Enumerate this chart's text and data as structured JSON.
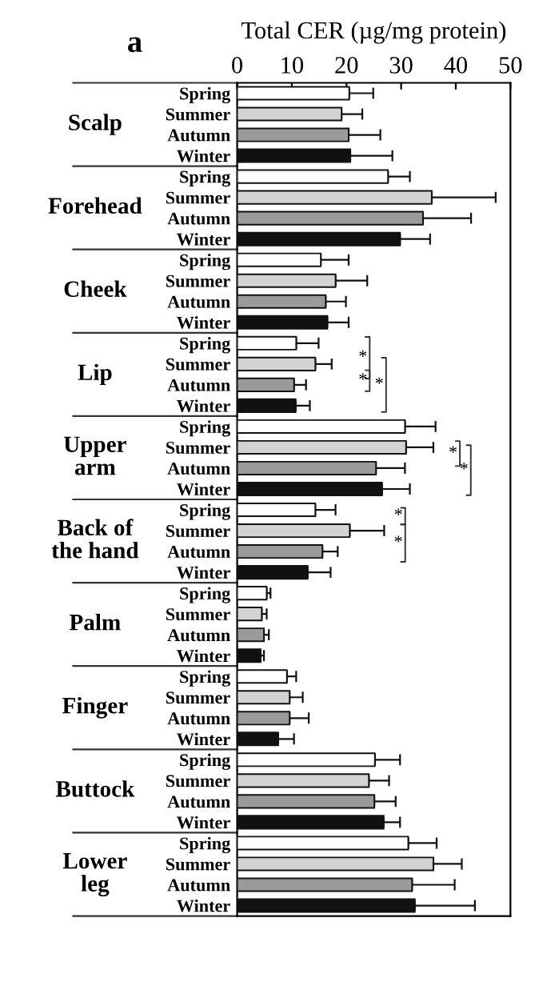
{
  "chart_data": {
    "type": "bar",
    "orientation": "horizontal",
    "title": "a",
    "xlabel": "Total CER (µg/mg protein)",
    "categories": [
      "Scalp",
      "Forehead",
      "Cheek",
      "Lip",
      "Upper\narm",
      "Back of\nthe hand",
      "Palm",
      "Finger",
      "Buttock",
      "Lower\nleg"
    ],
    "series": [
      {
        "name": "Spring",
        "color": "#ffffff",
        "values": [
          20.5,
          27.6,
          15.3,
          10.8,
          30.7,
          14.3,
          5.4,
          9.1,
          25.2,
          31.3
        ],
        "errors": [
          [
            20.5,
            24.9
          ],
          [
            27.6,
            31.6
          ],
          [
            15.3,
            20.4
          ],
          [
            10.8,
            14.9
          ],
          [
            30.7,
            36.3
          ],
          [
            14.3,
            18.0
          ],
          [
            5.4,
            6.1
          ],
          [
            9.1,
            10.8
          ],
          [
            25.2,
            29.8
          ],
          [
            31.3,
            36.5
          ]
        ]
      },
      {
        "name": "Summer",
        "color": "#d3d3d3",
        "values": [
          19.1,
          35.6,
          18.0,
          14.3,
          30.9,
          20.6,
          4.5,
          9.6,
          24.1,
          35.9
        ],
        "errors": [
          [
            19.1,
            22.9
          ],
          [
            35.6,
            47.3
          ],
          [
            18.0,
            23.8
          ],
          [
            14.3,
            17.3
          ],
          [
            30.9,
            35.9
          ],
          [
            20.6,
            26.9
          ],
          [
            4.5,
            5.4
          ],
          [
            9.6,
            12.0
          ],
          [
            24.1,
            27.8
          ],
          [
            35.9,
            41.1
          ]
        ]
      },
      {
        "name": "Autumn",
        "color": "#9a9a9a",
        "values": [
          20.4,
          34.0,
          16.2,
          10.4,
          25.4,
          15.6,
          4.9,
          9.6,
          25.1,
          32.0
        ],
        "errors": [
          [
            20.4,
            26.2
          ],
          [
            34.0,
            42.8
          ],
          [
            16.2,
            19.9
          ],
          [
            10.4,
            12.6
          ],
          [
            25.4,
            30.7
          ],
          [
            15.6,
            18.4
          ],
          [
            4.9,
            5.8
          ],
          [
            9.6,
            13.1
          ],
          [
            25.1,
            29.0
          ],
          [
            32.0,
            39.8
          ]
        ]
      },
      {
        "name": "Winter",
        "color": "#111111",
        "values": [
          20.7,
          29.8,
          16.5,
          10.7,
          26.5,
          12.9,
          4.3,
          7.5,
          26.8,
          32.5
        ],
        "errors": [
          [
            20.7,
            28.4
          ],
          [
            29.8,
            35.3
          ],
          [
            16.5,
            20.4
          ],
          [
            10.7,
            13.3
          ],
          [
            26.5,
            31.6
          ],
          [
            12.9,
            17.1
          ],
          [
            4.3,
            4.9
          ],
          [
            7.5,
            10.4
          ],
          [
            26.8,
            29.8
          ],
          [
            32.5,
            43.5
          ]
        ]
      }
    ],
    "xlim": [
      0,
      50
    ],
    "xticks": [
      0,
      10,
      20,
      30,
      40,
      50
    ],
    "grid": false,
    "legend": false,
    "annotations": [
      "*",
      "*",
      "*",
      "*",
      "*",
      "*",
      "*"
    ]
  }
}
